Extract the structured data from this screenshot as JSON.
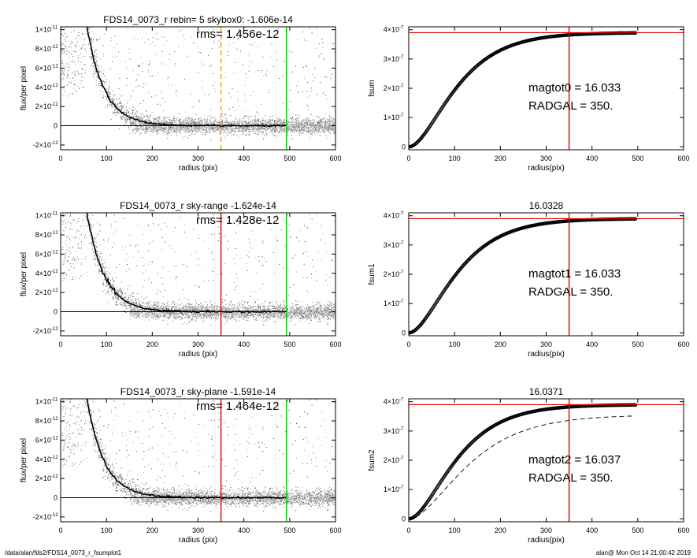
{
  "footer": {
    "path": "/data/alan/fds2/FDS14_0073_r_fsumplot1",
    "stamp": "alan@  Mon Oct 14 21:00:42 2019"
  },
  "chart_data": [
    {
      "type": "scatter",
      "title": "FDS14_0073_r rebin= 5    skybox0: -1.606e-14",
      "annotation": "rms= 1.456e-12",
      "xlabel": "radius (pix)",
      "ylabel": "flux/per pixel",
      "xlim": [
        0,
        600
      ],
      "ylim": [
        -2.5e-12,
        1.03e-11
      ],
      "xticks": [
        "0",
        "100",
        "200",
        "300",
        "400",
        "500",
        "600"
      ],
      "yticks": [
        {
          "value": 1e-11,
          "mant": "1×10",
          "exp": "-11"
        },
        {
          "value": 8e-12,
          "mant": "8×10",
          "exp": "-12"
        },
        {
          "value": 6e-12,
          "mant": "6×10",
          "exp": "-12"
        },
        {
          "value": 4e-12,
          "mant": "4×10",
          "exp": "-12"
        },
        {
          "value": 2e-12,
          "mant": "2×10",
          "exp": "-12"
        },
        {
          "value": 0,
          "mant": "0",
          "exp": ""
        },
        {
          "value": -2e-12,
          "mant": "-2×10",
          "exp": "-12"
        }
      ],
      "profile": {
        "peak_radius": 55,
        "scale_length": 38,
        "amplitude": 1.1e-11
      },
      "point_color": "#909090",
      "profile_color": "#000000",
      "vlines": [
        {
          "x": 350,
          "color": "#ff9900",
          "style": "dashed"
        },
        {
          "x": 493,
          "color": "#00cc00",
          "style": "solid"
        }
      ],
      "hlines": [
        {
          "y": 0,
          "color": "#000000"
        }
      ]
    },
    {
      "type": "line",
      "title": "",
      "xlabel": "radius(pix)",
      "ylabel": "fsum",
      "xlim": [
        0,
        600
      ],
      "ylim": [
        -1e-08,
        4.1e-07
      ],
      "xticks": [
        "0",
        "100",
        "200",
        "300",
        "400",
        "500",
        "600"
      ],
      "yticks": [
        {
          "value": 4e-07,
          "mant": "4×10",
          "exp": "-7"
        },
        {
          "value": 3e-07,
          "mant": "3×10",
          "exp": "-7"
        },
        {
          "value": 2e-07,
          "mant": "2×10",
          "exp": "-7"
        },
        {
          "value": 1e-07,
          "mant": "1×10",
          "exp": "-7"
        },
        {
          "value": 0,
          "mant": "0",
          "exp": ""
        }
      ],
      "growth_curve": {
        "x_max": 495,
        "asymptote": 3.9e-07,
        "scale": 60
      },
      "annotations": [
        "magtot0 =  16.033",
        "RADGAL =    350."
      ],
      "vlines": [
        {
          "x": 350,
          "color": "#e00000",
          "style": "solid"
        }
      ],
      "hlines": [
        {
          "y": 3.9e-07,
          "color": "#e00000"
        }
      ]
    },
    {
      "type": "scatter",
      "title": "FDS14_0073_r sky-range -1.624e-14",
      "annotation": "rms= 1.428e-12",
      "xlabel": "radius (pix)",
      "ylabel": "flux/per pixel",
      "xlim": [
        0,
        600
      ],
      "ylim": [
        -2.5e-12,
        1.03e-11
      ],
      "xticks": [
        "0",
        "100",
        "200",
        "300",
        "400",
        "500",
        "600"
      ],
      "yticks": [
        {
          "value": 1e-11,
          "mant": "1×10",
          "exp": "-11"
        },
        {
          "value": 8e-12,
          "mant": "8×10",
          "exp": "-12"
        },
        {
          "value": 6e-12,
          "mant": "6×10",
          "exp": "-12"
        },
        {
          "value": 4e-12,
          "mant": "4×10",
          "exp": "-12"
        },
        {
          "value": 2e-12,
          "mant": "2×10",
          "exp": "-12"
        },
        {
          "value": 0,
          "mant": "0",
          "exp": ""
        },
        {
          "value": -2e-12,
          "mant": "-2×10",
          "exp": "-12"
        }
      ],
      "profile": {
        "peak_radius": 55,
        "scale_length": 38,
        "amplitude": 1.1e-11
      },
      "point_color": "#909090",
      "profile_color": "#000000",
      "vlines": [
        {
          "x": 350,
          "color": "#e00000",
          "style": "solid"
        },
        {
          "x": 493,
          "color": "#00cc00",
          "style": "solid"
        }
      ],
      "hlines": [
        {
          "y": 0,
          "color": "#000000"
        }
      ]
    },
    {
      "type": "line",
      "title": "16.0328",
      "xlabel": "radius(pix)",
      "ylabel": "fsum1",
      "xlim": [
        0,
        600
      ],
      "ylim": [
        -1e-08,
        4.1e-07
      ],
      "xticks": [
        "0",
        "100",
        "200",
        "300",
        "400",
        "500",
        "600"
      ],
      "yticks": [
        {
          "value": 4e-07,
          "mant": "4×10",
          "exp": "-7"
        },
        {
          "value": 3e-07,
          "mant": "3×10",
          "exp": "-7"
        },
        {
          "value": 2e-07,
          "mant": "2×10",
          "exp": "-7"
        },
        {
          "value": 1e-07,
          "mant": "1×10",
          "exp": "-7"
        },
        {
          "value": 0,
          "mant": "0",
          "exp": ""
        }
      ],
      "growth_curve": {
        "x_max": 495,
        "asymptote": 3.9e-07,
        "scale": 60
      },
      "annotations": [
        "magtot1 =  16.033",
        "RADGAL =    350."
      ],
      "vlines": [
        {
          "x": 350,
          "color": "#e00000",
          "style": "solid"
        }
      ],
      "hlines": [
        {
          "y": 3.9e-07,
          "color": "#e00000"
        }
      ]
    },
    {
      "type": "scatter",
      "title": "FDS14_0073_r sky-plane -1.591e-14",
      "annotation": "rms= 1.464e-12",
      "xlabel": "radius (pix)",
      "ylabel": "flux/per pixel",
      "xlim": [
        0,
        600
      ],
      "ylim": [
        -2.5e-12,
        1.03e-11
      ],
      "xticks": [
        "0",
        "100",
        "200",
        "300",
        "400",
        "500",
        "600"
      ],
      "yticks": [
        {
          "value": 1e-11,
          "mant": "1×10",
          "exp": "-11"
        },
        {
          "value": 8e-12,
          "mant": "8×10",
          "exp": "-12"
        },
        {
          "value": 6e-12,
          "mant": "6×10",
          "exp": "-12"
        },
        {
          "value": 4e-12,
          "mant": "4×10",
          "exp": "-12"
        },
        {
          "value": 2e-12,
          "mant": "2×10",
          "exp": "-12"
        },
        {
          "value": 0,
          "mant": "0",
          "exp": ""
        },
        {
          "value": -2e-12,
          "mant": "-2×10",
          "exp": "-12"
        }
      ],
      "profile": {
        "peak_radius": 55,
        "scale_length": 38,
        "amplitude": 1.1e-11
      },
      "point_color": "#909090",
      "profile_color": "#000000",
      "vlines": [
        {
          "x": 350,
          "color": "#e00000",
          "style": "solid"
        },
        {
          "x": 493,
          "color": "#00cc00",
          "style": "solid"
        }
      ],
      "hlines": [
        {
          "y": 0,
          "color": "#000000"
        }
      ]
    },
    {
      "type": "line",
      "title": "16.0371",
      "xlabel": "radius(pix)",
      "ylabel": "fsum2",
      "xlim": [
        0,
        600
      ],
      "ylim": [
        -1e-08,
        4.1e-07
      ],
      "xticks": [
        "0",
        "100",
        "200",
        "300",
        "400",
        "500",
        "600"
      ],
      "yticks": [
        {
          "value": 4e-07,
          "mant": "4×10",
          "exp": "-7"
        },
        {
          "value": 3e-07,
          "mant": "3×10",
          "exp": "-7"
        },
        {
          "value": 2e-07,
          "mant": "2×10",
          "exp": "-7"
        },
        {
          "value": 1e-07,
          "mant": "1×10",
          "exp": "-7"
        },
        {
          "value": 0,
          "mant": "0",
          "exp": ""
        }
      ],
      "growth_curve": {
        "x_max": 495,
        "asymptote": 3.9e-07,
        "scale": 60
      },
      "dashed_curve": {
        "x_max": 495,
        "asymptote": 3.55e-07,
        "scale": 75
      },
      "annotations": [
        "magtot2 =  16.037",
        "RADGAL =    350."
      ],
      "vlines": [
        {
          "x": 350,
          "color": "#e00000",
          "style": "solid"
        }
      ],
      "hlines": [
        {
          "y": 3.9e-07,
          "color": "#e00000"
        }
      ]
    }
  ]
}
